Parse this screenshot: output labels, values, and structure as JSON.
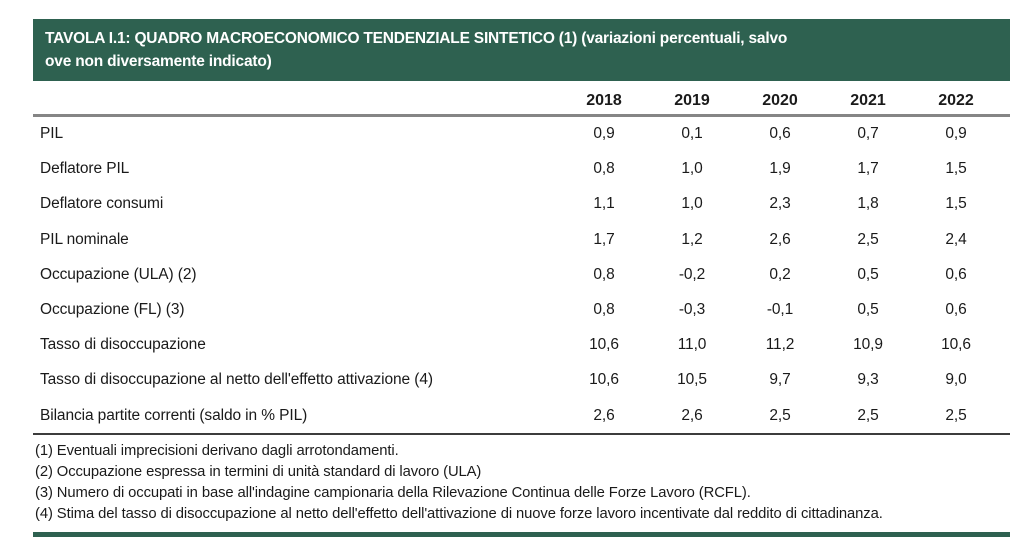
{
  "banner": {
    "line1": "TAVOLA I.1: QUADRO MACROECONOMICO TENDENZIALE SINTETICO (1) (variazioni percentuali, salvo",
    "line2": "ove non diversamente indicato)"
  },
  "table": {
    "years": [
      "2018",
      "2019",
      "2020",
      "2021",
      "2022"
    ],
    "rows": [
      {
        "label": "PIL",
        "values": [
          "0,9",
          "0,1",
          "0,6",
          "0,7",
          "0,9"
        ]
      },
      {
        "label": "Deflatore PIL",
        "values": [
          "0,8",
          "1,0",
          "1,9",
          "1,7",
          "1,5"
        ]
      },
      {
        "label": "Deflatore consumi",
        "values": [
          "1,1",
          "1,0",
          "2,3",
          "1,8",
          "1,5"
        ]
      },
      {
        "label": "PIL nominale",
        "values": [
          "1,7",
          "1,2",
          "2,6",
          "2,5",
          "2,4"
        ]
      },
      {
        "label": "Occupazione (ULA) (2)",
        "values": [
          "0,8",
          "-0,2",
          "0,2",
          "0,5",
          "0,6"
        ]
      },
      {
        "label": "Occupazione (FL) (3)",
        "values": [
          "0,8",
          "-0,3",
          "-0,1",
          "0,5",
          "0,6"
        ]
      },
      {
        "label": "Tasso di disoccupazione",
        "values": [
          "10,6",
          "11,0",
          "11,2",
          "10,9",
          "10,6"
        ]
      },
      {
        "label": "Tasso di disoccupazione al netto dell'effetto attivazione (4)",
        "values": [
          "10,6",
          "10,5",
          "9,7",
          "9,3",
          "9,0"
        ]
      },
      {
        "label": "Bilancia partite correnti (saldo in % PIL)",
        "values": [
          "2,6",
          "2,6",
          "2,5",
          "2,5",
          "2,5"
        ]
      }
    ],
    "footnotes": [
      "(1) Eventuali imprecisioni derivano dagli arrotondamenti.",
      "(2) Occupazione espressa in termini di unità standard di lavoro (ULA)",
      "(3) Numero di occupati in base all'indagine campionaria della Rilevazione Continua delle Forze Lavoro (RCFL).",
      "(4) Stima del tasso di disoccupazione al netto dell'effetto dell'attivazione di nuove forze lavoro incentivate dal reddito di cittadinanza."
    ]
  },
  "colors": {
    "banner_green": "#2E6150",
    "header_rule_gray": "#858585",
    "footnote_rule_dark": "#3c3c3c",
    "text": "#1a1a1a"
  }
}
